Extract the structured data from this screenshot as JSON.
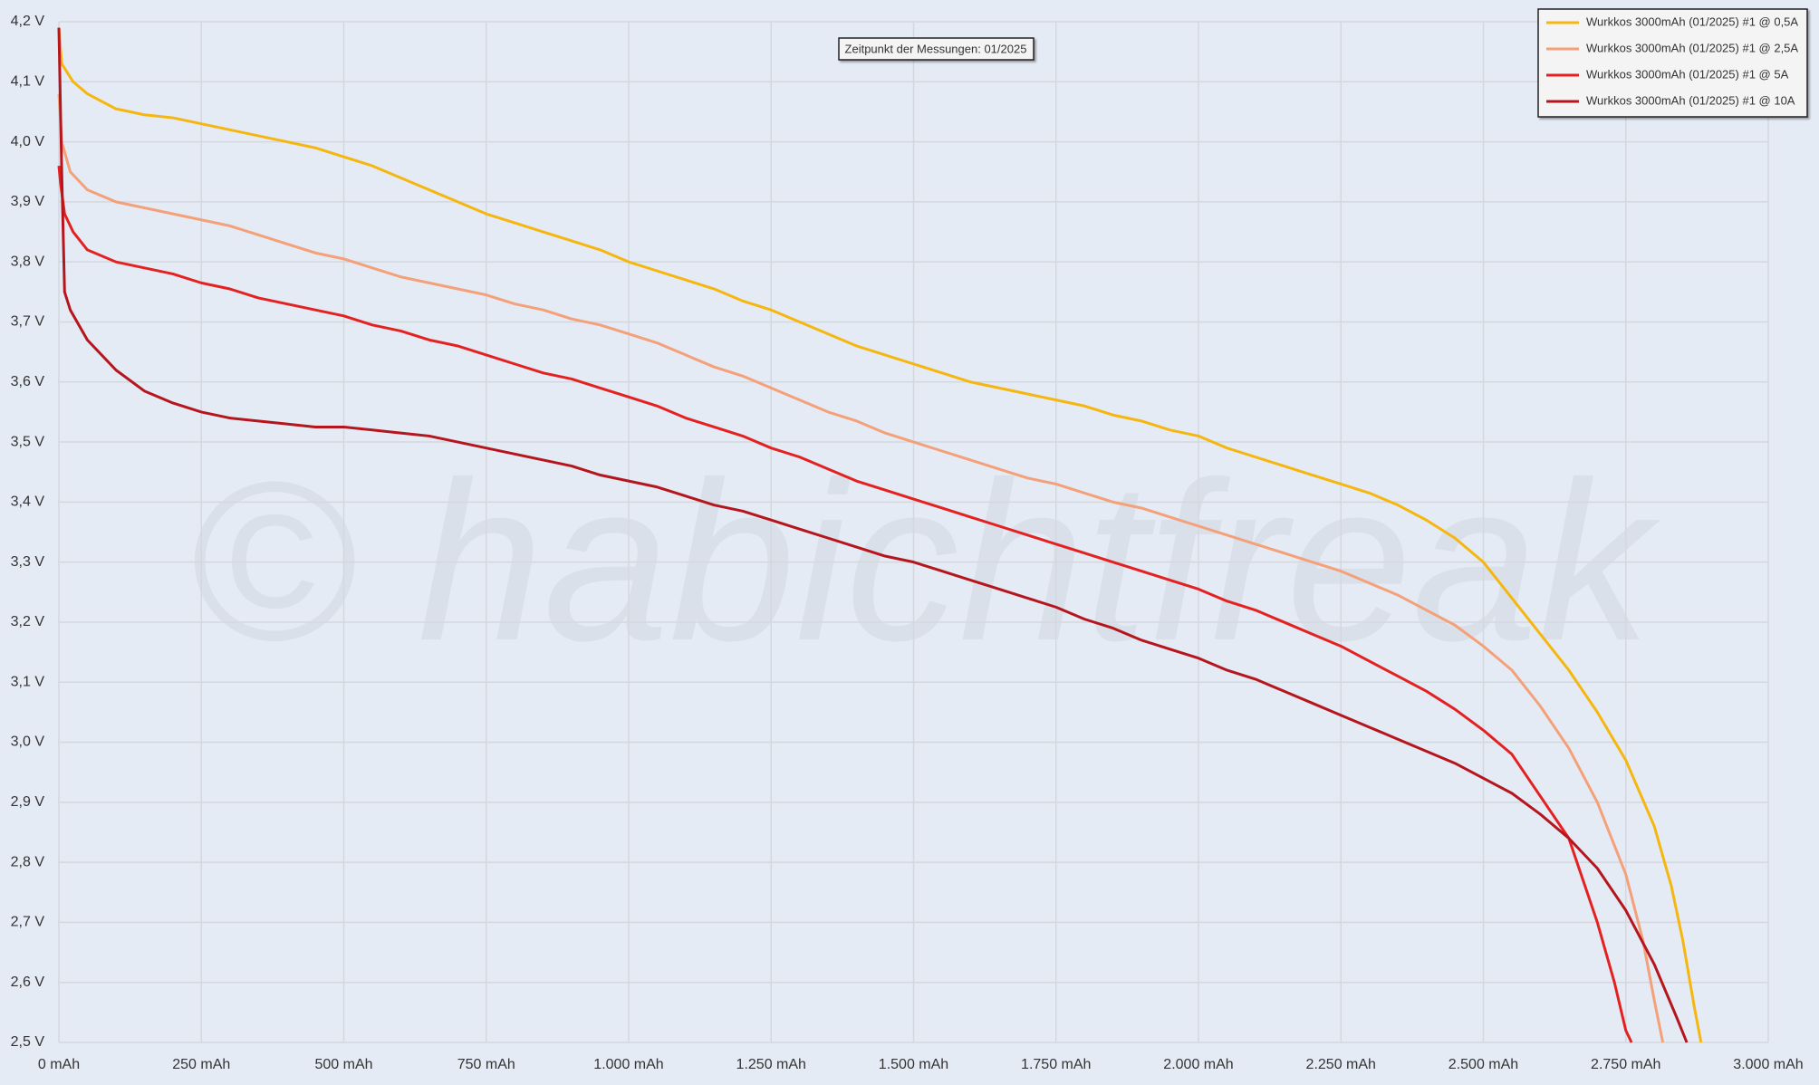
{
  "chart_data": {
    "type": "line",
    "annotation": "Zeitpunkt der Messungen: 01/2025",
    "watermark": "© habichtfreak",
    "legend": "upper right",
    "grid": true,
    "xlim": [
      0,
      3000
    ],
    "ylim": [
      2.5,
      4.2
    ],
    "xticks": [
      {
        "value": 0,
        "label": "0 mAh"
      },
      {
        "value": 250,
        "label": "250 mAh"
      },
      {
        "value": 500,
        "label": "500 mAh"
      },
      {
        "value": 750,
        "label": "750 mAh"
      },
      {
        "value": 1000,
        "label": "1.000 mAh"
      },
      {
        "value": 1250,
        "label": "1.250 mAh"
      },
      {
        "value": 1500,
        "label": "1.500 mAh"
      },
      {
        "value": 1750,
        "label": "1.750 mAh"
      },
      {
        "value": 2000,
        "label": "2.000 mAh"
      },
      {
        "value": 2250,
        "label": "2.250 mAh"
      },
      {
        "value": 2500,
        "label": "2.500 mAh"
      },
      {
        "value": 2750,
        "label": "2.750 mAh"
      },
      {
        "value": 3000,
        "label": "3.000 mAh"
      }
    ],
    "yticks": [
      {
        "value": 2.5,
        "label": "2,5 V"
      },
      {
        "value": 2.6,
        "label": "2,6 V"
      },
      {
        "value": 2.7,
        "label": "2,7 V"
      },
      {
        "value": 2.8,
        "label": "2,8 V"
      },
      {
        "value": 2.9,
        "label": "2,9 V"
      },
      {
        "value": 3.0,
        "label": "3,0 V"
      },
      {
        "value": 3.1,
        "label": "3,1 V"
      },
      {
        "value": 3.2,
        "label": "3,2 V"
      },
      {
        "value": 3.3,
        "label": "3,3 V"
      },
      {
        "value": 3.4,
        "label": "3,4 V"
      },
      {
        "value": 3.5,
        "label": "3,5 V"
      },
      {
        "value": 3.6,
        "label": "3,6 V"
      },
      {
        "value": 3.7,
        "label": "3,7 V"
      },
      {
        "value": 3.8,
        "label": "3,8 V"
      },
      {
        "value": 3.9,
        "label": "3,9 V"
      },
      {
        "value": 4.0,
        "label": "4,0 V"
      },
      {
        "value": 4.1,
        "label": "4,1 V"
      },
      {
        "value": 4.2,
        "label": "4,2 V"
      }
    ],
    "series": [
      {
        "name": "Wurkkos 3000mAh (01/2025) #1 @ 0,5A",
        "color": "#f5b60f",
        "x": [
          0,
          5,
          25,
          50,
          100,
          150,
          200,
          250,
          300,
          350,
          400,
          450,
          500,
          550,
          600,
          650,
          700,
          750,
          800,
          850,
          900,
          950,
          1000,
          1050,
          1100,
          1150,
          1200,
          1250,
          1300,
          1350,
          1400,
          1450,
          1500,
          1550,
          1600,
          1650,
          1700,
          1750,
          1800,
          1850,
          1900,
          1950,
          2000,
          2050,
          2100,
          2150,
          2200,
          2250,
          2300,
          2350,
          2400,
          2450,
          2500,
          2550,
          2600,
          2650,
          2700,
          2750,
          2800,
          2830,
          2850,
          2870,
          2882
        ],
        "values": [
          4.19,
          4.13,
          4.1,
          4.08,
          4.055,
          4.045,
          4.04,
          4.03,
          4.02,
          4.01,
          4.0,
          3.99,
          3.975,
          3.96,
          3.94,
          3.92,
          3.9,
          3.88,
          3.865,
          3.85,
          3.835,
          3.82,
          3.8,
          3.785,
          3.77,
          3.755,
          3.735,
          3.72,
          3.7,
          3.68,
          3.66,
          3.645,
          3.63,
          3.615,
          3.6,
          3.59,
          3.58,
          3.57,
          3.56,
          3.545,
          3.535,
          3.52,
          3.51,
          3.49,
          3.475,
          3.46,
          3.445,
          3.43,
          3.415,
          3.395,
          3.37,
          3.34,
          3.3,
          3.24,
          3.18,
          3.12,
          3.05,
          2.97,
          2.86,
          2.76,
          2.67,
          2.56,
          2.5
        ]
      },
      {
        "name": "Wurkkos 3000mAh (01/2025) #1 @ 2,5A",
        "color": "#f4a079",
        "x": [
          0,
          5,
          20,
          50,
          100,
          150,
          200,
          250,
          300,
          350,
          400,
          450,
          500,
          550,
          600,
          650,
          700,
          750,
          800,
          850,
          900,
          950,
          1000,
          1050,
          1100,
          1150,
          1200,
          1250,
          1300,
          1350,
          1400,
          1450,
          1500,
          1550,
          1600,
          1650,
          1700,
          1750,
          1800,
          1850,
          1900,
          1950,
          2000,
          2050,
          2100,
          2150,
          2200,
          2250,
          2300,
          2350,
          2400,
          2450,
          2500,
          2550,
          2600,
          2650,
          2700,
          2750,
          2780,
          2800,
          2815
        ],
        "values": [
          4.08,
          4.0,
          3.95,
          3.92,
          3.9,
          3.89,
          3.88,
          3.87,
          3.86,
          3.845,
          3.83,
          3.815,
          3.805,
          3.79,
          3.775,
          3.765,
          3.755,
          3.745,
          3.73,
          3.72,
          3.705,
          3.695,
          3.68,
          3.665,
          3.645,
          3.625,
          3.61,
          3.59,
          3.57,
          3.55,
          3.535,
          3.515,
          3.5,
          3.485,
          3.47,
          3.455,
          3.44,
          3.43,
          3.415,
          3.4,
          3.39,
          3.375,
          3.36,
          3.345,
          3.33,
          3.315,
          3.3,
          3.285,
          3.265,
          3.245,
          3.22,
          3.195,
          3.16,
          3.12,
          3.06,
          2.99,
          2.9,
          2.78,
          2.67,
          2.57,
          2.5
        ]
      },
      {
        "name": "Wurkkos 3000mAh (01/2025) #1 @ 5A",
        "color": "#e42121",
        "x": [
          0,
          3,
          10,
          25,
          50,
          100,
          150,
          200,
          250,
          300,
          350,
          400,
          450,
          500,
          550,
          600,
          650,
          700,
          750,
          800,
          850,
          900,
          950,
          1000,
          1050,
          1100,
          1150,
          1200,
          1250,
          1300,
          1350,
          1400,
          1450,
          1500,
          1550,
          1600,
          1650,
          1700,
          1750,
          1800,
          1850,
          1900,
          1950,
          2000,
          2050,
          2100,
          2150,
          2200,
          2250,
          2300,
          2350,
          2400,
          2450,
          2500,
          2550,
          2600,
          2650,
          2700,
          2730,
          2750,
          2760
        ],
        "values": [
          3.96,
          3.93,
          3.88,
          3.85,
          3.82,
          3.8,
          3.79,
          3.78,
          3.765,
          3.755,
          3.74,
          3.73,
          3.72,
          3.71,
          3.695,
          3.685,
          3.67,
          3.66,
          3.645,
          3.63,
          3.615,
          3.605,
          3.59,
          3.575,
          3.56,
          3.54,
          3.525,
          3.51,
          3.49,
          3.475,
          3.455,
          3.435,
          3.42,
          3.405,
          3.39,
          3.375,
          3.36,
          3.345,
          3.33,
          3.315,
          3.3,
          3.285,
          3.27,
          3.255,
          3.235,
          3.22,
          3.2,
          3.18,
          3.16,
          3.135,
          3.11,
          3.085,
          3.055,
          3.02,
          2.98,
          2.91,
          2.84,
          2.7,
          2.6,
          2.52,
          2.5
        ]
      },
      {
        "name": "Wurkkos 3000mAh (01/2025) #1 @ 10A",
        "color": "#b5161e",
        "x": [
          0,
          5,
          10,
          20,
          50,
          100,
          150,
          200,
          250,
          300,
          350,
          400,
          450,
          500,
          550,
          600,
          650,
          700,
          750,
          800,
          850,
          900,
          950,
          1000,
          1050,
          1100,
          1150,
          1200,
          1250,
          1300,
          1350,
          1400,
          1450,
          1500,
          1550,
          1600,
          1650,
          1700,
          1750,
          1800,
          1850,
          1900,
          1950,
          2000,
          2050,
          2100,
          2150,
          2200,
          2250,
          2300,
          2350,
          2400,
          2450,
          2500,
          2550,
          2600,
          2650,
          2700,
          2750,
          2800,
          2840,
          2857
        ],
        "values": [
          4.19,
          3.95,
          3.75,
          3.72,
          3.67,
          3.62,
          3.585,
          3.565,
          3.55,
          3.54,
          3.535,
          3.53,
          3.525,
          3.525,
          3.52,
          3.515,
          3.51,
          3.5,
          3.49,
          3.48,
          3.47,
          3.46,
          3.445,
          3.435,
          3.425,
          3.41,
          3.395,
          3.385,
          3.37,
          3.355,
          3.34,
          3.325,
          3.31,
          3.3,
          3.285,
          3.27,
          3.255,
          3.24,
          3.225,
          3.205,
          3.19,
          3.17,
          3.155,
          3.14,
          3.12,
          3.105,
          3.085,
          3.065,
          3.045,
          3.025,
          3.005,
          2.985,
          2.965,
          2.94,
          2.915,
          2.88,
          2.84,
          2.79,
          2.72,
          2.63,
          2.54,
          2.5
        ]
      }
    ]
  }
}
